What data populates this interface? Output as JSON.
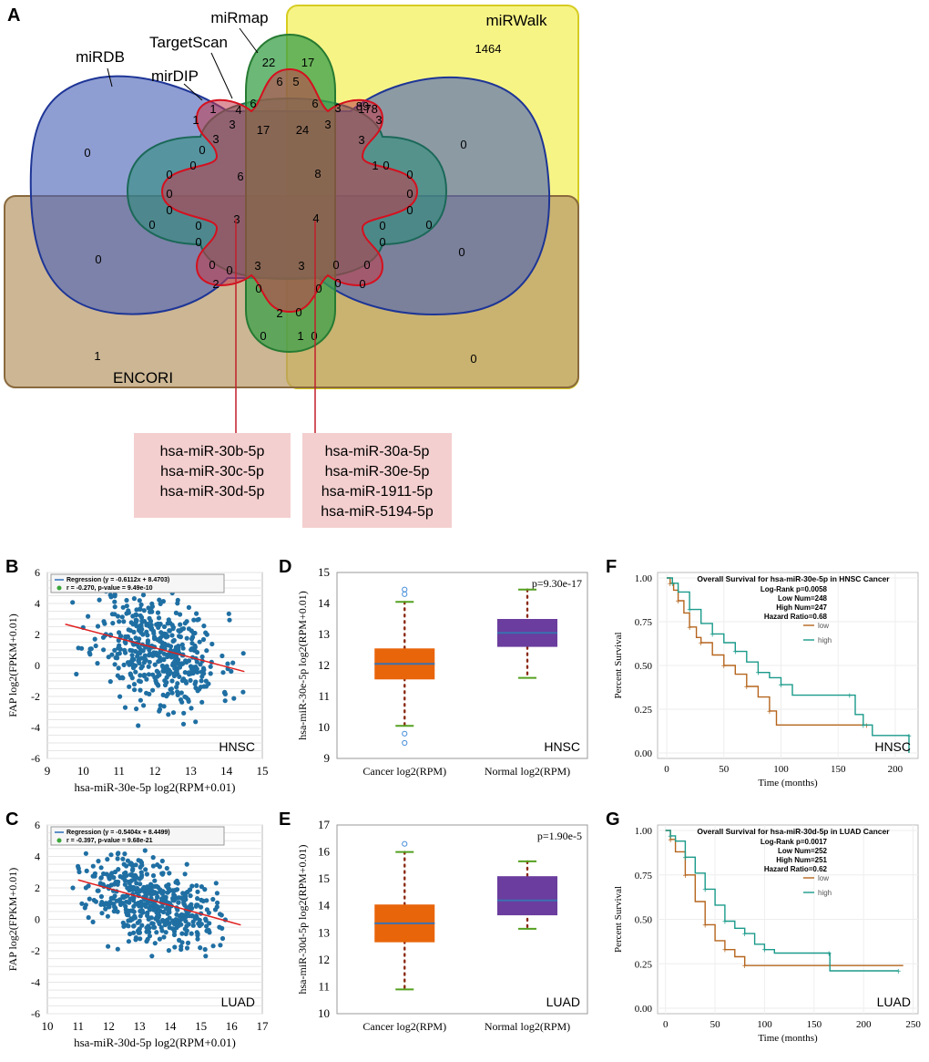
{
  "panel_labels": [
    "A",
    "B",
    "C",
    "D",
    "E",
    "F",
    "G"
  ],
  "venn": {
    "sets": {
      "mirwalk": "miRWalk",
      "mirdb": "miRDB",
      "targetscan": "TargetScan",
      "mirdip": "mirDIP",
      "mirmap": "miRmap",
      "encori": "ENCORI"
    },
    "region_counts": [
      "1464",
      "0",
      "0",
      "0",
      "0",
      "1",
      "0",
      "22",
      "17",
      "6",
      "5",
      "6",
      "6",
      "4",
      "3",
      "3",
      "89",
      "1",
      "178",
      "1",
      "3",
      "3",
      "17",
      "24",
      "3",
      "3",
      "0",
      "0",
      "0",
      "0",
      "1",
      "0",
      "6",
      "8",
      "0",
      "0",
      "0",
      "0",
      "0",
      "0",
      "3",
      "4",
      "0",
      "0",
      "0",
      "0",
      "0",
      "0",
      "3",
      "3",
      "0",
      "0",
      "2",
      "0",
      "0",
      "0",
      "0",
      "0",
      "2",
      "0",
      "0",
      "1"
    ],
    "callout_left": [
      "hsa-miR-30b-5p",
      "hsa-miR-30c-5p",
      "hsa-miR-30d-5p"
    ],
    "callout_right": [
      "hsa-miR-30a-5p",
      "hsa-miR-30e-5p",
      "hsa-miR-1911-5p",
      "hsa-miR-5194-5p"
    ]
  },
  "chart_data": [
    {
      "panel": "B",
      "type": "scatter",
      "legend": [
        "Regression (y = -0.6112x + 8.4703)",
        "r = -0.270, p-value = 9.49e-10"
      ],
      "xlabel": "hsa-miR-30e-5p  log2(RPM+0.01)",
      "ylabel": "FAP  log2(FPKM+0.01)",
      "xticks": [
        "9",
        "10",
        "11",
        "12",
        "13",
        "14",
        "15"
      ],
      "yticks": [
        "6",
        "4",
        "2",
        "0",
        "-2",
        "-4",
        "-6"
      ],
      "xlim": [
        9,
        15
      ],
      "ylim": [
        -6,
        6
      ],
      "cancer": "HNSC",
      "regression": {
        "slope": -0.6112,
        "intercept": 8.4703,
        "x_range": [
          9.5,
          14.5
        ]
      },
      "n_points": 480,
      "center": [
        12.1,
        1.05
      ],
      "spread": [
        0.85,
        1.95
      ]
    },
    {
      "panel": "C",
      "type": "scatter",
      "legend": [
        "Regression (y = -0.5404x + 8.4499)",
        "r = -0.397, p-value = 9.68e-21"
      ],
      "xlabel": "hsa-miR-30d-5p  log2(RPM+0.01)",
      "ylabel": "FAP  log2(FPKM+0.01)",
      "xticks": [
        "10",
        "11",
        "12",
        "13",
        "14",
        "15",
        "16",
        "17"
      ],
      "yticks": [
        "6",
        "4",
        "2",
        "0",
        "-2",
        "-4",
        "-6"
      ],
      "xlim": [
        10,
        17
      ],
      "ylim": [
        -6,
        6
      ],
      "cancer": "LUAD",
      "regression": {
        "slope": -0.5404,
        "intercept": 8.4499,
        "x_range": [
          11,
          16.3
        ]
      },
      "n_points": 500,
      "center": [
        13.4,
        1.2
      ],
      "spread": [
        1.0,
        1.4
      ]
    },
    {
      "panel": "D",
      "type": "box",
      "ylabel": "hsa-miR-30e-5p  log2(RPM+0.01)",
      "categories": [
        "Cancer log2(RPM)",
        "Normal log2(RPM)"
      ],
      "yticks": [
        "15",
        "14",
        "13",
        "12",
        "11",
        "10",
        "9"
      ],
      "ylim": [
        9,
        15
      ],
      "pvalue": "p=9.30e-17",
      "cancer": "HNSC",
      "boxes": [
        {
          "q1": 11.55,
          "median": 12.05,
          "q3": 12.55,
          "whisker_low": 10.05,
          "whisker_high": 14.05,
          "outliers": [
            14.45,
            14.3,
            9.8,
            9.5
          ],
          "color": "#e8650a"
        },
        {
          "q1": 12.6,
          "median": 13.05,
          "q3": 13.5,
          "whisker_low": 11.6,
          "whisker_high": 14.45,
          "outliers": [],
          "color": "#6b3d9e"
        }
      ]
    },
    {
      "panel": "E",
      "type": "box",
      "ylabel": "hsa-miR-30d-5p  log2(RPM+0.01)",
      "categories": [
        "Cancer log2(RPM)",
        "Normal log2(RPM)"
      ],
      "yticks": [
        "17",
        "16",
        "15",
        "14",
        "13",
        "12",
        "11",
        "10"
      ],
      "ylim": [
        10,
        17
      ],
      "pvalue": "p=1.90e-5",
      "cancer": "LUAD",
      "boxes": [
        {
          "q1": 12.65,
          "median": 13.35,
          "q3": 14.05,
          "whisker_low": 10.9,
          "whisker_high": 16.0,
          "outliers": [
            16.3
          ],
          "color": "#e8650a"
        },
        {
          "q1": 13.65,
          "median": 14.2,
          "q3": 15.1,
          "whisker_low": 13.15,
          "whisker_high": 15.65,
          "outliers": [],
          "color": "#6b3d9e"
        }
      ]
    },
    {
      "panel": "F",
      "type": "line",
      "title": "Overall Survival for hsa-miR-30e-5p in HNSC Cancer",
      "stats": [
        "Log-Rank p=0.0058",
        "Low Num=248",
        "High Num=247",
        "Hazard Ratio=0.68"
      ],
      "legend": [
        "low",
        "high"
      ],
      "xlabel": "Time (months)",
      "ylabel": "Percent Survival",
      "xticks": [
        "0",
        "50",
        "100",
        "150",
        "200"
      ],
      "yticks": [
        "1.00",
        "0.75",
        "0.50",
        "0.25",
        "0.00"
      ],
      "xlim": [
        -8,
        220
      ],
      "ylim": [
        0,
        1
      ],
      "cancer": "HNSC",
      "series": [
        {
          "name": "low",
          "color": "#b5651d",
          "points": [
            [
              0,
              1
            ],
            [
              3,
              0.97
            ],
            [
              6,
              0.93
            ],
            [
              10,
              0.87
            ],
            [
              15,
              0.8
            ],
            [
              20,
              0.72
            ],
            [
              26,
              0.66
            ],
            [
              30,
              0.63
            ],
            [
              40,
              0.56
            ],
            [
              50,
              0.5
            ],
            [
              60,
              0.45
            ],
            [
              70,
              0.38
            ],
            [
              80,
              0.32
            ],
            [
              90,
              0.24
            ],
            [
              96,
              0.16
            ],
            [
              175,
              0.16
            ]
          ]
        },
        {
          "name": "high",
          "color": "#1a9a8a",
          "points": [
            [
              0,
              1
            ],
            [
              5,
              0.97
            ],
            [
              10,
              0.92
            ],
            [
              20,
              0.82
            ],
            [
              30,
              0.74
            ],
            [
              40,
              0.68
            ],
            [
              50,
              0.63
            ],
            [
              60,
              0.58
            ],
            [
              70,
              0.52
            ],
            [
              80,
              0.46
            ],
            [
              90,
              0.43
            ],
            [
              100,
              0.39
            ],
            [
              110,
              0.33
            ],
            [
              160,
              0.33
            ],
            [
              165,
              0.22
            ],
            [
              172,
              0.16
            ],
            [
              180,
              0.1
            ],
            [
              212,
              0.1
            ],
            [
              212,
              0
            ]
          ]
        }
      ]
    },
    {
      "panel": "G",
      "type": "line",
      "title": "Overall Survival for hsa-miR-30d-5p in LUAD Cancer",
      "stats": [
        "Log-Rank p=0.0017",
        "Low Num=252",
        "High Num=251",
        "Hazard Ratio=0.62"
      ],
      "legend": [
        "low",
        "high"
      ],
      "xlabel": "Time (months)",
      "ylabel": "Percent Survival",
      "xticks": [
        "0",
        "50",
        "100",
        "150",
        "200",
        "250"
      ],
      "yticks": [
        "1.00",
        "0.75",
        "0.50",
        "0.25",
        "0.00"
      ],
      "xlim": [
        -8,
        255
      ],
      "ylim": [
        0,
        1
      ],
      "cancer": "LUAD",
      "series": [
        {
          "name": "low",
          "color": "#b5651d",
          "points": [
            [
              0,
              1
            ],
            [
              5,
              0.95
            ],
            [
              10,
              0.88
            ],
            [
              20,
              0.75
            ],
            [
              30,
              0.6
            ],
            [
              40,
              0.47
            ],
            [
              50,
              0.38
            ],
            [
              60,
              0.33
            ],
            [
              70,
              0.29
            ],
            [
              80,
              0.24
            ],
            [
              240,
              0.24
            ]
          ]
        },
        {
          "name": "high",
          "color": "#1a9a8a",
          "points": [
            [
              0,
              1
            ],
            [
              5,
              0.97
            ],
            [
              10,
              0.94
            ],
            [
              20,
              0.85
            ],
            [
              30,
              0.76
            ],
            [
              40,
              0.67
            ],
            [
              50,
              0.58
            ],
            [
              60,
              0.49
            ],
            [
              70,
              0.45
            ],
            [
              80,
              0.42
            ],
            [
              90,
              0.36
            ],
            [
              100,
              0.33
            ],
            [
              110,
              0.31
            ],
            [
              165,
              0.31
            ],
            [
              166,
              0.21
            ],
            [
              235,
              0.21
            ]
          ]
        }
      ]
    }
  ]
}
